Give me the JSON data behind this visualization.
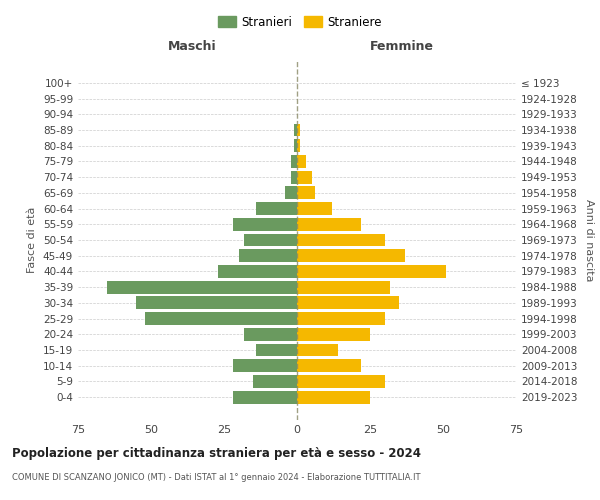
{
  "age_groups": [
    "0-4",
    "5-9",
    "10-14",
    "15-19",
    "20-24",
    "25-29",
    "30-34",
    "35-39",
    "40-44",
    "45-49",
    "50-54",
    "55-59",
    "60-64",
    "65-69",
    "70-74",
    "75-79",
    "80-84",
    "85-89",
    "90-94",
    "95-99",
    "100+"
  ],
  "birth_years": [
    "2019-2023",
    "2014-2018",
    "2009-2013",
    "2004-2008",
    "1999-2003",
    "1994-1998",
    "1989-1993",
    "1984-1988",
    "1979-1983",
    "1974-1978",
    "1969-1973",
    "1964-1968",
    "1959-1963",
    "1954-1958",
    "1949-1953",
    "1944-1948",
    "1939-1943",
    "1934-1938",
    "1929-1933",
    "1924-1928",
    "≤ 1923"
  ],
  "males": [
    22,
    15,
    22,
    14,
    18,
    52,
    55,
    65,
    27,
    20,
    18,
    22,
    14,
    4,
    2,
    2,
    1,
    1,
    0,
    0,
    0
  ],
  "females": [
    25,
    30,
    22,
    14,
    25,
    30,
    35,
    32,
    51,
    37,
    30,
    22,
    12,
    6,
    5,
    3,
    1,
    1,
    0,
    0,
    0
  ],
  "male_color": "#6a9a5f",
  "female_color": "#f5b800",
  "title": "Popolazione per cittadinanza straniera per età e sesso - 2024",
  "subtitle": "COMUNE DI SCANZANO JONICO (MT) - Dati ISTAT al 1° gennaio 2024 - Elaborazione TUTTITALIA.IT",
  "xlabel_left": "Maschi",
  "xlabel_right": "Femmine",
  "ylabel_left": "Fasce di età",
  "ylabel_right": "Anni di nascita",
  "legend_male": "Stranieri",
  "legend_female": "Straniere",
  "xlim": 75,
  "background_color": "#ffffff",
  "grid_color": "#cccccc"
}
